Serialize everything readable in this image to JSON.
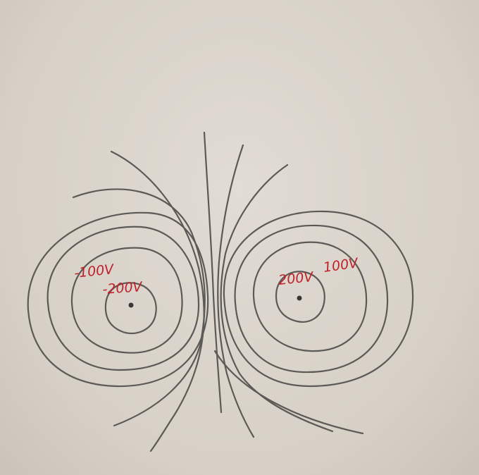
{
  "labels": {
    "left_outer": "-100V",
    "left_inner": "-200V",
    "right_outer": "100V",
    "right_inner": "200V"
  },
  "colors": {
    "pencil": "#5c5a57",
    "ink_red": "#c0202a",
    "paper": "#d8d2c8"
  }
}
